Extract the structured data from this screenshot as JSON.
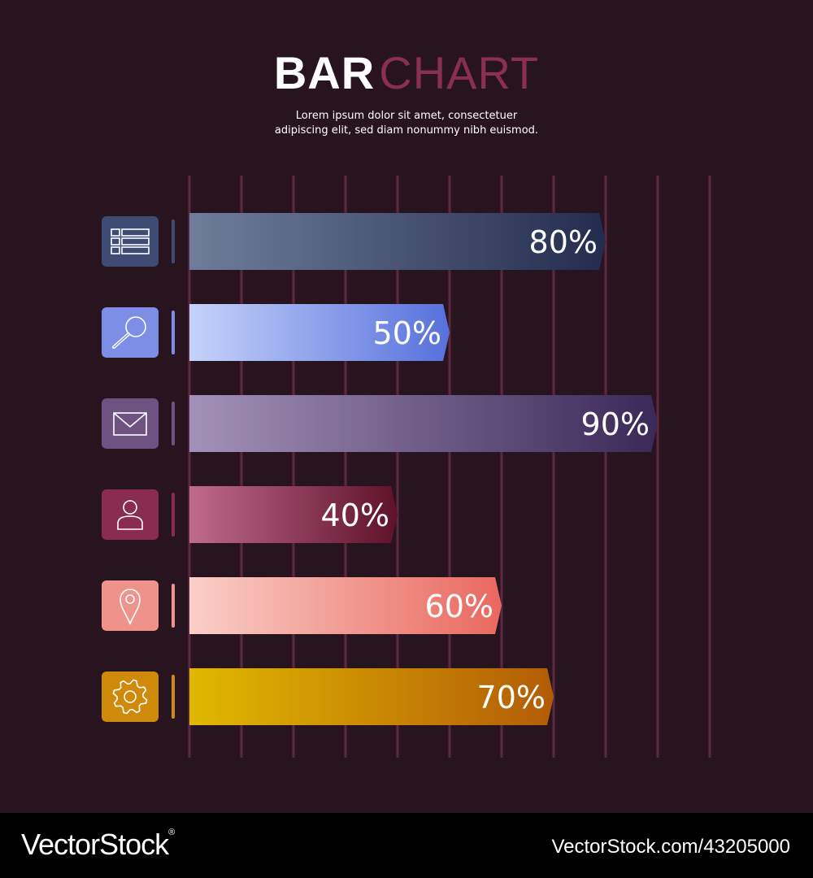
{
  "header": {
    "title_bold": "BAR",
    "title_light": "CHART",
    "title_light_color": "#8a2e52",
    "subtitle_line1": "Lorem ipsum dolor sit amet, consectetuer",
    "subtitle_line2": "adipiscing elit, sed diam nonummy nibh euismod."
  },
  "chart_data": {
    "type": "bar",
    "orientation": "horizontal",
    "xlim": [
      0,
      100
    ],
    "grid": true,
    "legend": "none",
    "bars": [
      {
        "icon": "table-icon",
        "value": 80,
        "label": "80%",
        "icon_color": "#3e4c74",
        "color_start": "#6f7d9b",
        "color_end": "#232c4e"
      },
      {
        "icon": "search-icon",
        "value": 50,
        "label": "50%",
        "icon_color": "#7d8ee6",
        "color_start": "#c5d3fa",
        "color_end": "#5770dc"
      },
      {
        "icon": "mail-icon",
        "value": 90,
        "label": "90%",
        "icon_color": "#6e5382",
        "color_start": "#a291b8",
        "color_end": "#3a2857"
      },
      {
        "icon": "user-icon",
        "value": 40,
        "label": "40%",
        "icon_color": "#8a2c51",
        "color_start": "#c06a8c",
        "color_end": "#5e1129"
      },
      {
        "icon": "location-pin-icon",
        "value": 60,
        "label": "60%",
        "icon_color": "#f0928c",
        "color_start": "#f9cfc7",
        "color_end": "#e9685f"
      },
      {
        "icon": "gear-icon",
        "value": 70,
        "label": "70%",
        "icon_color": "#d08a0b",
        "color_start": "#e1b800",
        "color_end": "#b25c06"
      }
    ]
  },
  "footer": {
    "brand": "VectorStock",
    "brand_mark": "®",
    "stock_id": "VectorStock.com/43205000"
  }
}
